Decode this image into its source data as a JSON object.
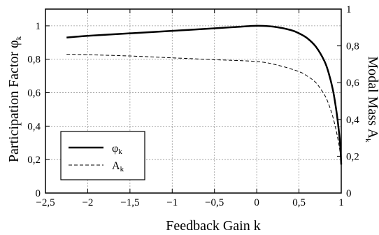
{
  "chart_data": {
    "type": "line",
    "xlabel": "Feedback Gain k",
    "ylabel_left": {
      "main": "Participation Factor φ",
      "sub": "k"
    },
    "ylabel_right": {
      "main": "Modal Mass A",
      "sub": "k"
    },
    "xlim": [
      -2.5,
      1
    ],
    "ylim_left": [
      0,
      1.1
    ],
    "ylim_right": [
      0,
      1.0
    ],
    "x_ticks": [
      -2.5,
      -2,
      -1.5,
      -1,
      -0.5,
      0,
      0.5,
      1
    ],
    "x_tick_labels": [
      "−2,5",
      "−2",
      "−1,5",
      "−1",
      "−0,5",
      "0",
      "0,5",
      "1"
    ],
    "y_left_ticks": [
      0,
      0.2,
      0.4,
      0.6,
      0.8,
      1
    ],
    "y_left_tick_labels": [
      "0",
      "0,2",
      "0,4",
      "0,6",
      "0,8",
      "1"
    ],
    "y_right_ticks": [
      0,
      0.2,
      0.4,
      0.6,
      0.8,
      1
    ],
    "y_right_tick_labels": [
      "0",
      "0,2",
      "0,4",
      "0,6",
      "0,8",
      "1"
    ],
    "grid": true,
    "legend_position": "bottom-left",
    "series": [
      {
        "name": "φ",
        "name_sub": "k",
        "axis": "left",
        "style": "solid",
        "color": "#000000",
        "x": [
          -2.25,
          -2,
          -1.5,
          -1,
          -0.5,
          -0.25,
          0,
          0.2,
          0.4,
          0.5,
          0.6,
          0.7,
          0.8,
          0.85,
          0.9,
          0.94,
          0.97,
          0.99,
          1.0
        ],
        "y": [
          0.93,
          0.94,
          0.955,
          0.97,
          0.985,
          0.993,
          1.0,
          0.995,
          0.975,
          0.955,
          0.925,
          0.875,
          0.79,
          0.72,
          0.62,
          0.5,
          0.38,
          0.27,
          0.17
        ]
      },
      {
        "name": "A",
        "name_sub": "k",
        "axis": "right",
        "style": "dashed",
        "color": "#000000",
        "x": [
          -2.25,
          -2,
          -1.5,
          -1,
          -0.5,
          0,
          0.25,
          0.5,
          0.6,
          0.7,
          0.8,
          0.85,
          0.9,
          0.94,
          0.97,
          0.99,
          1.0
        ],
        "y": [
          0.755,
          0.752,
          0.745,
          0.735,
          0.725,
          0.715,
          0.695,
          0.66,
          0.635,
          0.6,
          0.535,
          0.485,
          0.415,
          0.34,
          0.27,
          0.21,
          0.165
        ]
      }
    ]
  }
}
